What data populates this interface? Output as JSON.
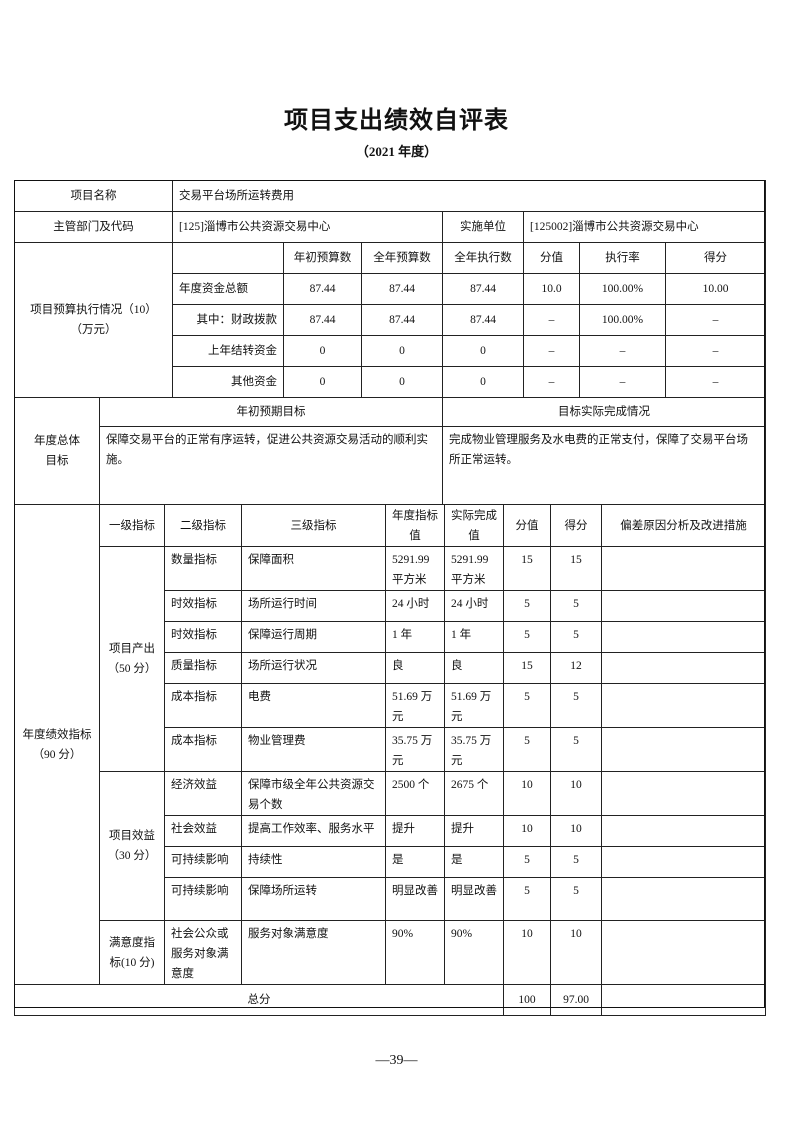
{
  "title": "项目支出绩效自评表",
  "subtitle": "（2021 年度）",
  "project": {
    "name_label": "项目名称",
    "name_value": "交易平台场所运转费用",
    "dept_label": "主管部门及代码",
    "dept_value": "[125]淄博市公共资源交易中心",
    "impl_label": "实施单位",
    "impl_value": "[125002]淄博市公共资源交易中心"
  },
  "budget": {
    "label": "项目预算执行情况（10）（万元）",
    "headers": [
      "年初预算数",
      "全年预算数",
      "全年执行数",
      "分值",
      "执行率",
      "得分"
    ],
    "rows": [
      {
        "label": "年度资金总额",
        "values": [
          "87.44",
          "87.44",
          "87.44",
          "10.0",
          "100.00%",
          "10.00"
        ]
      },
      {
        "label": "其中：财政拨款",
        "values": [
          "87.44",
          "87.44",
          "87.44",
          "–",
          "100.00%",
          "–"
        ]
      },
      {
        "label": "上年结转资金",
        "values": [
          "0",
          "0",
          "0",
          "–",
          "–",
          "–"
        ]
      },
      {
        "label": "其他资金",
        "values": [
          "0",
          "0",
          "0",
          "–",
          "–",
          "–"
        ]
      }
    ]
  },
  "goals": {
    "label": "年度总体目标",
    "expected_header": "年初预期目标",
    "actual_header": "目标实际完成情况",
    "expected": "保障交易平台的正常有序运转，促进公共资源交易活动的顺利实施。",
    "actual": "完成物业管理服务及水电费的正常支付，保障了交易平台场所正常运转。"
  },
  "indicators": {
    "label": "年度绩效指标（90 分）",
    "headers": [
      "一级指标",
      "二级指标",
      "三级指标",
      "年度指标值",
      "实际完成值",
      "分值",
      "得分",
      "偏差原因分析及改进措施"
    ],
    "groups": [
      {
        "name": "项目产出（50 分）",
        "rows": [
          {
            "l2": "数量指标",
            "l3": "保障面积",
            "target": "5291.99 平方米",
            "actual": "5291.99 平方米",
            "score_max": "15",
            "score": "15",
            "note": ""
          },
          {
            "l2": "时效指标",
            "l3": "场所运行时间",
            "target": "24 小时",
            "actual": "24 小时",
            "score_max": "5",
            "score": "5",
            "note": ""
          },
          {
            "l2": "时效指标",
            "l3": "保障运行周期",
            "target": "1 年",
            "actual": "1 年",
            "score_max": "5",
            "score": "5",
            "note": ""
          },
          {
            "l2": "质量指标",
            "l3": "场所运行状况",
            "target": "良",
            "actual": "良",
            "score_max": "15",
            "score": "12",
            "note": ""
          },
          {
            "l2": "成本指标",
            "l3": "电费",
            "target": "51.69 万元",
            "actual": "51.69 万元",
            "score_max": "5",
            "score": "5",
            "note": ""
          },
          {
            "l2": "成本指标",
            "l3": "物业管理费",
            "target": "35.75 万元",
            "actual": "35.75 万元",
            "score_max": "5",
            "score": "5",
            "note": ""
          }
        ]
      },
      {
        "name": "项目效益（30 分）",
        "rows": [
          {
            "l2": "经济效益",
            "l3": "保障市级全年公共资源交易个数",
            "target": "2500 个",
            "actual": "2675 个",
            "score_max": "10",
            "score": "10",
            "note": ""
          },
          {
            "l2": "社会效益",
            "l3": "提高工作效率、服务水平",
            "target": "提升",
            "actual": "提升",
            "score_max": "10",
            "score": "10",
            "note": ""
          },
          {
            "l2": "可持续影响",
            "l3": "持续性",
            "target": "是",
            "actual": "是",
            "score_max": "5",
            "score": "5",
            "note": ""
          },
          {
            "l2": "可持续影响",
            "l3": "保障场所运转",
            "target": "明显改善",
            "actual": "明显改善",
            "score_max": "5",
            "score": "5",
            "note": ""
          }
        ]
      },
      {
        "name": "满意度指标(10 分)",
        "rows": [
          {
            "l2": "社会公众或服务对象满意度",
            "l3": "服务对象满意度",
            "target": "90%",
            "actual": "90%",
            "score_max": "10",
            "score": "10",
            "note": ""
          }
        ]
      }
    ],
    "total_label": "总分",
    "total_max": "100",
    "total_score": "97.00"
  },
  "page_number": "—39—"
}
